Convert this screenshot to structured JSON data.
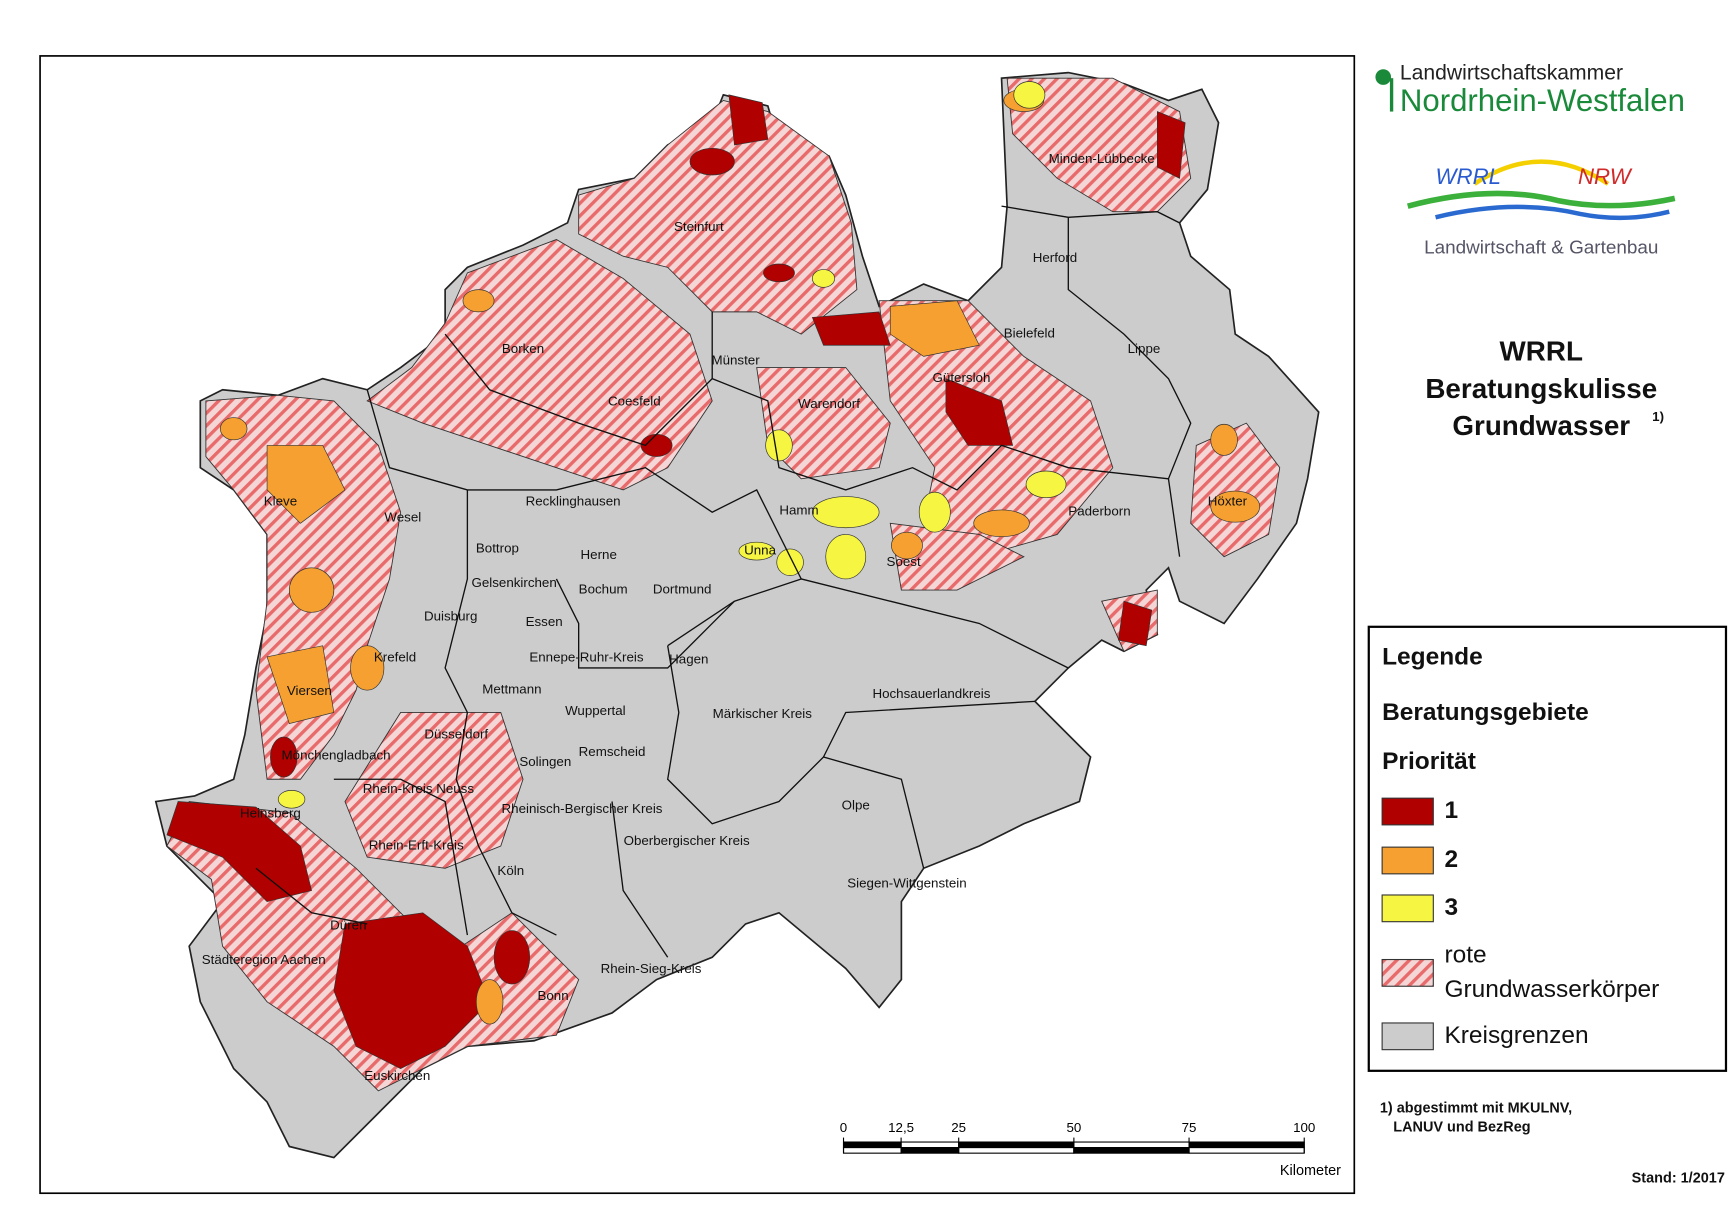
{
  "logo": {
    "chamber": "Landwirtschaftskammer",
    "state": "Nordrhein-Westfalen",
    "wrrl": "WRRL",
    "nrw": "NRW",
    "subtitle": "Landwirtschaft & Gartenbau"
  },
  "title": {
    "line1": "WRRL",
    "line2": "Beratungskulisse",
    "line3": "Grundwasser",
    "note_mark": "1)"
  },
  "districts": [
    "Minden-Lübbecke",
    "Herford",
    "Bielefeld",
    "Lippe",
    "Steinfurt",
    "Münster",
    "Warendorf",
    "Gütersloh",
    "Borken",
    "Coesfeld",
    "Kleve",
    "Wesel",
    "Recklinghausen",
    "Höxter",
    "Paderborn",
    "Hamm",
    "Unna",
    "Soest",
    "Bottrop",
    "Herne",
    "Gelsenkirchen",
    "Bochum",
    "Dortmund",
    "Duisburg",
    "Essen",
    "Ennepe-Ruhr-Kreis",
    "Hagen",
    "Krefeld",
    "Hochsauerlandkreis",
    "Viersen",
    "Mettmann",
    "Wuppertal",
    "Märkischer Kreis",
    "Düsseldorf",
    "Remscheid",
    "Mönchengladbach",
    "Solingen",
    "Rhein-Kreis Neuss",
    "Heinsberg",
    "Rheinisch-Bergischer Kreis",
    "Olpe",
    "Oberbergischer Kreis",
    "Rhein-Erft-Kreis",
    "Köln",
    "Siegen-Wittgenstein",
    "Düren",
    "Städteregion Aachen",
    "Rhein-Sieg-Kreis",
    "Bonn",
    "Euskirchen"
  ],
  "legend": {
    "title": "Legende",
    "subtitle": "Beratungsgebiete",
    "group": "Priorität",
    "items": [
      {
        "label": "1",
        "color": "#b00000"
      },
      {
        "label": "2",
        "color": "#f5a030"
      },
      {
        "label": "3",
        "color": "#f5f542"
      },
      {
        "label": [
          "rote",
          "Grundwasserkörper"
        ]
      },
      {
        "label": "Kreisgrenzen",
        "color": "#cccccc"
      }
    ]
  },
  "scale_bar": {
    "ticks": [
      0,
      {
        "value": 12.5,
        "label": "12,5"
      },
      25,
      50,
      75,
      100
    ],
    "unit": "Kilometer"
  },
  "footnote": [
    "1) abgestimmt mit MKULNV,",
    "LANUV und BezReg"
  ],
  "stand": "Stand: 1/2017"
}
